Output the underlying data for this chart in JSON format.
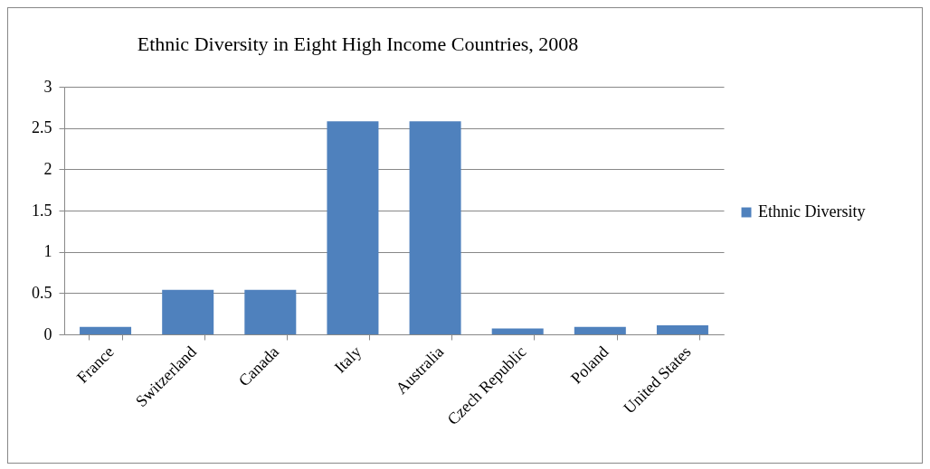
{
  "chart_data": {
    "type": "bar",
    "title": "Ethnic Diversity in Eight High Income Countries, 2008",
    "categories": [
      "France",
      "Switzerland",
      "Canada",
      "Italy",
      "Australia",
      "Czech Republic",
      "Poland",
      "United States"
    ],
    "series": [
      {
        "name": "Ethnic Diversity",
        "color": "#4f81bd",
        "values": [
          0.09,
          0.54,
          0.54,
          2.58,
          2.58,
          0.07,
          0.09,
          0.11
        ]
      }
    ],
    "ylim": [
      0,
      3
    ],
    "yticks": [
      {
        "value": 0,
        "label": "0"
      },
      0.5,
      {
        "value": 1,
        "label": "1"
      },
      1.5,
      {
        "value": 2,
        "label": "2"
      },
      2.5,
      {
        "value": 3,
        "label": "3"
      }
    ],
    "grid": "y",
    "legend": "right"
  }
}
